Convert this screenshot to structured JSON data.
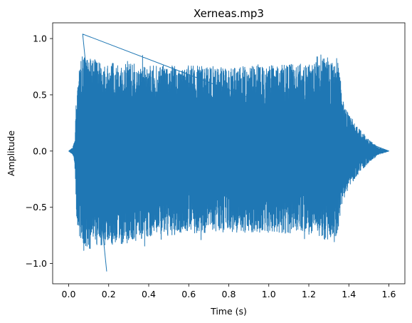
{
  "chart_data": {
    "type": "line",
    "title": "Xerneas.mp3",
    "xlabel": "Time (s)",
    "ylabel": "Amplitude",
    "xlim": [
      -0.08,
      1.68
    ],
    "ylim": [
      -1.18,
      1.14
    ],
    "x_ticks": [
      0.0,
      0.2,
      0.4,
      0.6,
      0.8,
      1.0,
      1.2,
      1.4,
      1.6
    ],
    "x_tick_labels": [
      "0.0",
      "0.2",
      "0.4",
      "0.6",
      "0.8",
      "1.0",
      "1.2",
      "1.4",
      "1.6"
    ],
    "y_ticks": [
      -1.0,
      -0.5,
      0.0,
      0.5,
      1.0
    ],
    "y_tick_labels": [
      "−1.0",
      "−0.5",
      "0.0",
      "0.5",
      "1.0"
    ],
    "grid": false,
    "legend": "none",
    "series": [
      {
        "color": "#1f77b4",
        "duration_s": 1.6,
        "envelope": {
          "x": [
            0.0,
            0.02,
            0.03,
            0.04,
            0.05,
            0.07,
            0.1,
            0.2,
            0.4,
            0.6,
            0.8,
            1.0,
            1.2,
            1.25,
            1.3,
            1.33,
            1.35,
            1.37,
            1.4,
            1.45,
            1.5,
            1.55,
            1.6
          ],
          "upper": [
            0.0,
            0.03,
            0.1,
            0.55,
            0.72,
            0.86,
            0.82,
            0.8,
            0.76,
            0.76,
            0.75,
            0.76,
            0.78,
            0.86,
            0.86,
            0.85,
            0.8,
            0.45,
            0.32,
            0.2,
            0.1,
            0.03,
            0.0
          ],
          "lower": [
            0.0,
            -0.03,
            -0.1,
            -0.6,
            -0.76,
            -0.86,
            -0.87,
            -0.85,
            -0.77,
            -0.73,
            -0.72,
            -0.73,
            -0.74,
            -0.78,
            -0.79,
            -0.78,
            -0.7,
            -0.45,
            -0.32,
            -0.2,
            -0.1,
            -0.03,
            0.0
          ]
        },
        "peaks": {
          "max": {
            "x": 0.07,
            "y": 1.04
          },
          "min": {
            "x": 0.19,
            "y": -1.07
          }
        }
      }
    ]
  }
}
